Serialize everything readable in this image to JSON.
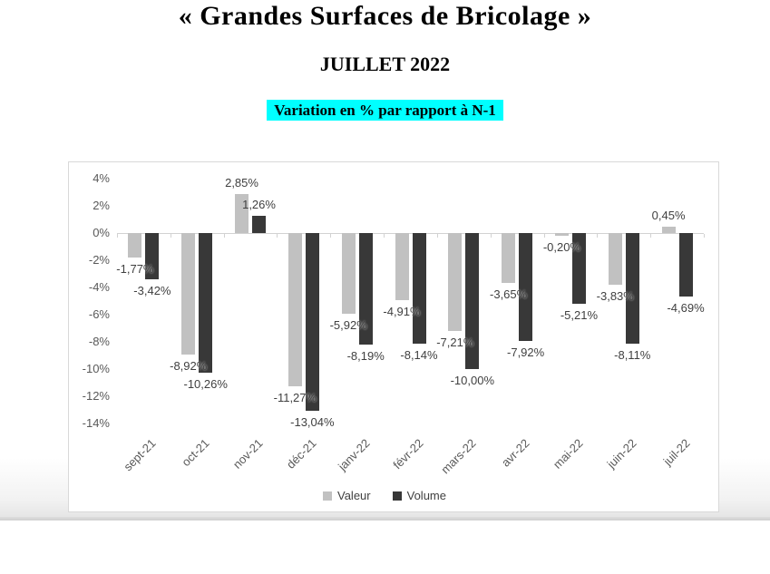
{
  "page": {
    "title": "« Grandes Surfaces de Bricolage »",
    "subtitle": "JUILLET 2022",
    "banner": "Variation en % par rapport à N-1",
    "banner_bg": "#00FFFF"
  },
  "chart_data": {
    "type": "bar",
    "title": "",
    "xlabel": "",
    "ylabel": "",
    "categories": [
      "sept-21",
      "oct-21",
      "nov-21",
      "déc-21",
      "janv-22",
      "févr-22",
      "mars-22",
      "avr-22",
      "mai-22",
      "juin-22",
      "juil-22"
    ],
    "series": [
      {
        "name": "Valeur",
        "color": "#C1C1C1",
        "values": [
          -1.77,
          -8.92,
          2.85,
          -11.27,
          -5.92,
          -4.91,
          -7.21,
          -3.65,
          -0.2,
          -3.83,
          0.45
        ],
        "labels": [
          "-1,77%",
          "-8,92%",
          "2,85%",
          "-11,27%",
          "-5,92%",
          "-4,91%",
          "-7,21%",
          "-3,65%",
          "-0,20%",
          "-3,83%",
          "0,45%"
        ]
      },
      {
        "name": "Volume",
        "color": "#383838",
        "values": [
          -3.42,
          -10.26,
          1.26,
          -13.04,
          -8.19,
          -8.14,
          -10.0,
          -7.92,
          -5.21,
          -8.11,
          -4.69
        ],
        "labels": [
          "-3,42%",
          "-10,26%",
          "1,26%",
          "-13,04%",
          "-8,19%",
          "-8,14%",
          "-10,00%",
          "-7,92%",
          "-5,21%",
          "-8,11%",
          "-4,69%"
        ]
      }
    ],
    "y_ticks": [
      "4%",
      "2%",
      "0%",
      "-2%",
      "-4%",
      "-6%",
      "-8%",
      "-10%",
      "-12%",
      "-14%"
    ],
    "y_tick_values": [
      4,
      2,
      0,
      -2,
      -4,
      -6,
      -8,
      -10,
      -12,
      -14
    ],
    "ylim": [
      -14,
      4
    ],
    "grid": false,
    "legend": [
      "Valeur",
      "Volume"
    ],
    "legend_position": "bottom"
  }
}
